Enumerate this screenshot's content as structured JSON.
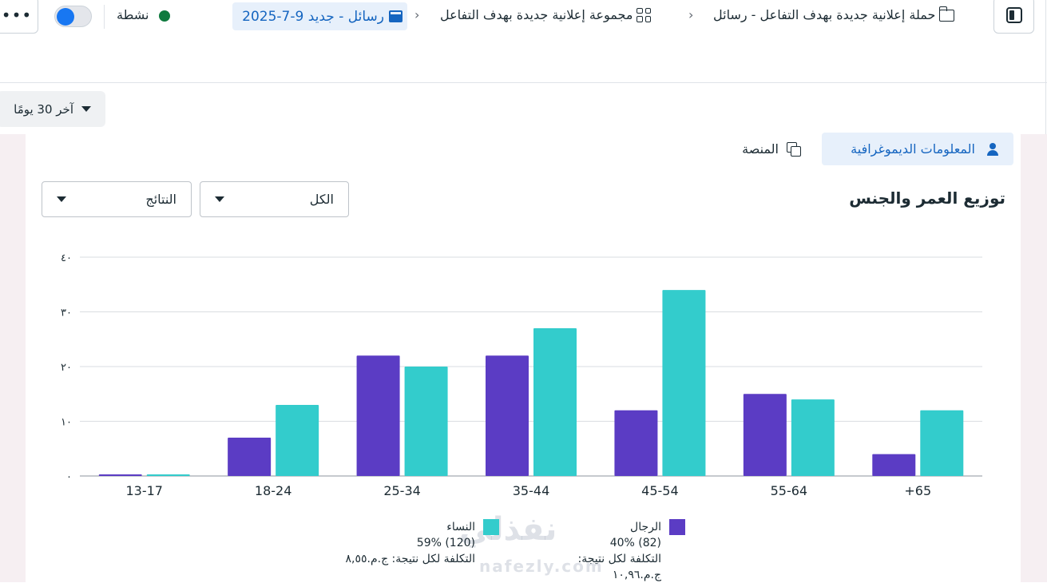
{
  "header": {
    "more_label": "•••",
    "status_label": "نشطة",
    "toggle_on": true,
    "breadcrumb": {
      "ad": "رسائل - جديد 9-7-2025",
      "ad_set": "مجموعة إعلانية جديدة بهدف التفاعل",
      "campaign": "حملة إعلانية جديدة بهدف التفاعل - رسائل",
      "separator": "›"
    }
  },
  "date_range": {
    "label": "آخر 30 يومًا"
  },
  "tabs": [
    {
      "label": "المعلومات الديموغرافية",
      "icon": "people-icon",
      "active": true
    },
    {
      "label": "المنصة",
      "icon": "copy-icon",
      "active": false
    }
  ],
  "section": {
    "title": "توزيع العمر والجنس"
  },
  "filters": {
    "audience": "الكل",
    "metric": "النتائج"
  },
  "legend": {
    "men": {
      "name": "الرجال",
      "share": "40% (82)",
      "cost": "التكلفة لكل نتيجة: ج.م.١٠,٩٦"
    },
    "women": {
      "name": "النساء",
      "share": "59% (120)",
      "cost": "التكلفة لكل نتيجة: ج.م.٨,٥٥"
    }
  },
  "watermark": {
    "text": "نفذلي",
    "url": "nafezly.com"
  },
  "colors": {
    "men": "#5b3cc4",
    "women": "#33cccc",
    "accent": "#1565c0",
    "status": "#0e7a3e"
  },
  "chart_data": {
    "type": "bar",
    "categories": [
      "13-17",
      "18-24",
      "25-34",
      "35-44",
      "45-54",
      "55-64",
      "+65"
    ],
    "series": [
      {
        "name": "الرجال",
        "values": [
          0.3,
          7,
          22,
          22,
          12,
          15,
          4
        ]
      },
      {
        "name": "النساء",
        "values": [
          0.3,
          13,
          20,
          27,
          34,
          14,
          12
        ]
      }
    ],
    "yticks": [
      "٠",
      "١٠",
      "٢٠",
      "٣٠",
      "٤٠"
    ],
    "ylim": [
      0,
      40
    ],
    "grid": true
  }
}
